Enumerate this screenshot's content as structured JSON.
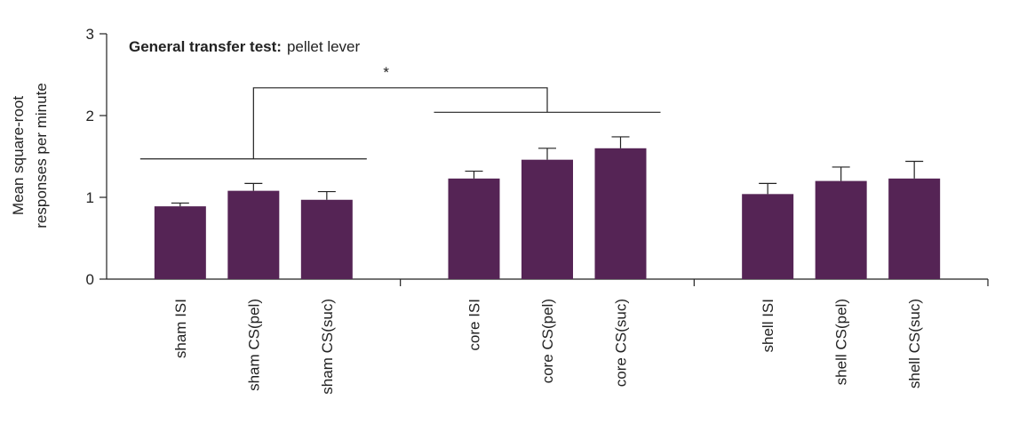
{
  "chart_data": {
    "type": "bar",
    "title_bold": "General transfer test:",
    "title_rest": "pellet lever",
    "ylabel_line1": "Mean square-root",
    "ylabel_line2": "responses per minute",
    "xlabel": "",
    "ylim": [
      0,
      3
    ],
    "yticks": [
      "0",
      "1",
      "2",
      "3"
    ],
    "grid": false,
    "legend": "none",
    "bar_color": "#552455",
    "categories": [
      "sham ISI",
      "sham CS(pel)",
      "sham CS(suc)",
      "core ISI",
      "core CS(pel)",
      "core CS(suc)",
      "shell ISI",
      "shell CS(pel)",
      "shell CS(suc)"
    ],
    "groups": [
      [
        "sham ISI",
        "sham CS(pel)",
        "sham CS(suc)"
      ],
      [
        "core ISI",
        "core CS(pel)",
        "core CS(suc)"
      ],
      [
        "shell ISI",
        "shell CS(pel)",
        "shell CS(suc)"
      ]
    ],
    "values": [
      0.89,
      1.08,
      0.97,
      1.23,
      1.46,
      1.6,
      1.04,
      1.2,
      1.23
    ],
    "errors": [
      0.04,
      0.09,
      0.1,
      0.09,
      0.14,
      0.14,
      0.13,
      0.17,
      0.21
    ],
    "annotations": [
      {
        "type": "bracket",
        "label": "",
        "from_category": "sham ISI",
        "to_category": "sham CS(suc)",
        "y": 1.47
      },
      {
        "type": "bracket",
        "label": "",
        "from_category": "core ISI",
        "to_category": "core CS(suc)",
        "y": 2.04
      },
      {
        "type": "significance",
        "label": "*",
        "y": 2.35
      }
    ]
  }
}
